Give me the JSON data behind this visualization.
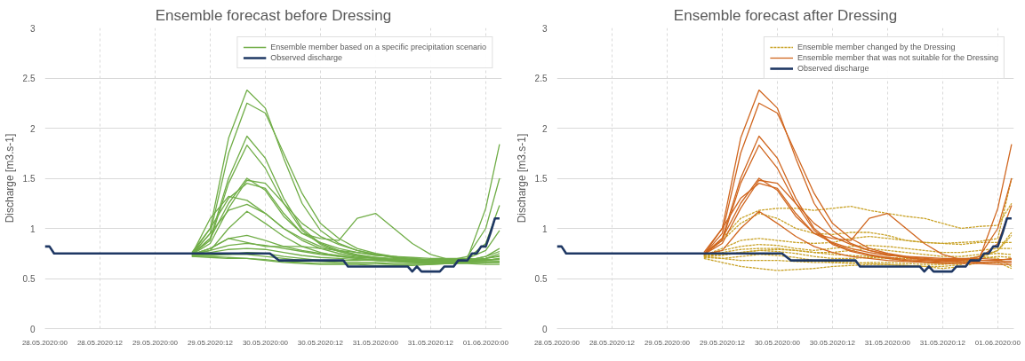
{
  "chart_data": [
    {
      "type": "line",
      "title": "Ensemble forecast before Dressing",
      "ylabel": "Discharge [m3.s-1]",
      "x": [
        "2020-05-29T08:00",
        "2020-05-29T12:00",
        "2020-05-29T16:00",
        "2020-05-29T20:00",
        "2020-05-30T00:00",
        "2020-05-30T04:00",
        "2020-05-30T08:00",
        "2020-05-30T12:00",
        "2020-05-30T16:00",
        "2020-05-30T20:00",
        "2020-05-31T00:00",
        "2020-05-31T04:00",
        "2020-05-31T08:00",
        "2020-05-31T12:00",
        "2020-05-31T16:00",
        "2020-05-31T20:00",
        "2020-06-01T00:00",
        "2020-06-01T03:00"
      ],
      "xlim": [
        "2020-05-28T00:00",
        "2020-06-01T03:30"
      ],
      "xticks": [
        {
          "value": "2020-05-28T00:00",
          "label": "28.05.2020:00"
        },
        {
          "value": "2020-05-28T12:00",
          "label": "28.05.2020:12"
        },
        {
          "value": "2020-05-29T00:00",
          "label": "29.05.2020:00"
        },
        {
          "value": "2020-05-29T12:00",
          "label": "29.05.2020:12"
        },
        {
          "value": "2020-05-30T00:00",
          "label": "30.05.2020:00"
        },
        {
          "value": "2020-05-30T12:00",
          "label": "30.05.2020:12"
        },
        {
          "value": "2020-05-31T00:00",
          "label": "31.05.2020:00"
        },
        {
          "value": "2020-05-31T12:00",
          "label": "31.05.2020:12"
        },
        {
          "value": "2020-06-01T00:00",
          "label": "01.06.2020:00"
        }
      ],
      "ylim": [
        0,
        3
      ],
      "yticks": [
        0,
        0.5,
        1,
        1.5,
        2,
        2.5,
        3
      ],
      "grid": true,
      "legend": "top right",
      "series": [
        {
          "name": "Ensemble member based on a specific precipitation scenario",
          "color": "#70ad47",
          "values": [
            0.74,
            1.0,
            1.9,
            2.38,
            2.2,
            1.7,
            1.25,
            0.98,
            0.85,
            0.78,
            0.74,
            0.71,
            0.69,
            0.68,
            0.67,
            0.66,
            0.66,
            0.66
          ]
        },
        {
          "color": "#70ad47",
          "values": [
            0.74,
            0.95,
            1.75,
            2.25,
            2.15,
            1.75,
            1.35,
            1.05,
            0.9,
            0.8,
            0.75,
            0.72,
            0.7,
            0.69,
            0.69,
            0.7,
            1.2,
            1.84
          ]
        },
        {
          "color": "#70ad47",
          "values": [
            0.74,
            0.9,
            1.5,
            1.92,
            1.7,
            1.3,
            1.0,
            0.85,
            0.78,
            0.74,
            0.71,
            0.69,
            0.68,
            0.67,
            0.68,
            0.72,
            1.0,
            1.5
          ]
        },
        {
          "color": "#70ad47",
          "values": [
            0.74,
            0.88,
            1.45,
            1.83,
            1.6,
            1.25,
            0.98,
            0.84,
            0.77,
            0.73,
            0.7,
            0.68,
            0.67,
            0.66,
            0.66,
            0.66,
            0.67,
            0.67
          ]
        },
        {
          "color": "#70ad47",
          "values": [
            0.74,
            0.85,
            1.2,
            1.48,
            1.45,
            1.25,
            1.05,
            0.92,
            0.84,
            0.78,
            0.74,
            0.71,
            0.69,
            0.68,
            0.68,
            0.7,
            0.85,
            1.23
          ]
        },
        {
          "color": "#70ad47",
          "values": [
            0.76,
            1.0,
            1.3,
            1.45,
            1.4,
            1.15,
            0.95,
            0.9,
            0.88,
            1.1,
            1.15,
            1.0,
            0.85,
            0.74,
            0.69,
            0.68,
            0.68,
            0.7
          ]
        },
        {
          "color": "#70ad47",
          "values": [
            0.74,
            0.78,
            1.0,
            1.17,
            1.05,
            0.92,
            0.82,
            0.76,
            0.72,
            0.7,
            0.68,
            0.67,
            0.66,
            0.65,
            0.65,
            0.65,
            0.64,
            0.64
          ]
        },
        {
          "color": "#70ad47",
          "values": [
            0.74,
            0.9,
            1.25,
            1.5,
            1.38,
            1.12,
            0.95,
            0.86,
            0.8,
            0.76,
            0.73,
            0.72,
            0.71,
            0.7,
            0.7,
            0.7,
            0.69,
            0.69
          ]
        },
        {
          "color": "#70ad47",
          "values": [
            0.74,
            1.1,
            1.32,
            1.28,
            1.15,
            1.0,
            0.9,
            0.82,
            0.77,
            0.73,
            0.71,
            0.7,
            0.69,
            0.68,
            0.68,
            0.68,
            0.7,
            0.73
          ]
        },
        {
          "color": "#70ad47",
          "values": [
            0.74,
            0.95,
            1.18,
            1.24,
            1.15,
            1.0,
            0.88,
            0.8,
            0.75,
            0.72,
            0.7,
            0.68,
            0.67,
            0.66,
            0.66,
            0.67,
            0.68,
            0.7
          ]
        },
        {
          "color": "#70ad47",
          "values": [
            0.74,
            0.8,
            0.9,
            0.93,
            0.88,
            0.82,
            0.78,
            0.75,
            0.73,
            0.71,
            0.7,
            0.69,
            0.68,
            0.67,
            0.67,
            0.68,
            0.72,
            0.8
          ]
        },
        {
          "color": "#70ad47",
          "values": [
            0.74,
            0.78,
            0.83,
            0.85,
            0.83,
            0.8,
            0.77,
            0.74,
            0.72,
            0.7,
            0.69,
            0.68,
            0.67,
            0.66,
            0.66,
            0.67,
            0.7,
            0.75
          ]
        },
        {
          "color": "#70ad47",
          "values": [
            0.74,
            0.76,
            0.79,
            0.8,
            0.79,
            0.76,
            0.73,
            0.71,
            0.7,
            0.69,
            0.68,
            0.67,
            0.66,
            0.65,
            0.65,
            0.66,
            0.66,
            0.67
          ]
        },
        {
          "color": "#70ad47",
          "values": [
            0.73,
            0.73,
            0.74,
            0.76,
            0.75,
            0.72,
            0.7,
            0.68,
            0.68,
            0.68,
            0.69,
            0.69,
            0.68,
            0.67,
            0.68,
            0.7,
            0.78,
            0.98
          ]
        },
        {
          "color": "#70ad47",
          "values": [
            0.72,
            0.71,
            0.7,
            0.7,
            0.69,
            0.67,
            0.66,
            0.65,
            0.65,
            0.65,
            0.65,
            0.64,
            0.64,
            0.64,
            0.65,
            0.66,
            0.66,
            0.66
          ]
        },
        {
          "color": "#70ad47",
          "values": [
            0.73,
            0.74,
            0.74,
            0.74,
            0.72,
            0.7,
            0.68,
            0.67,
            0.66,
            0.66,
            0.66,
            0.65,
            0.65,
            0.65,
            0.66,
            0.68,
            0.72,
            0.77
          ]
        },
        {
          "color": "#70ad47",
          "values": [
            0.72,
            0.72,
            0.71,
            0.7,
            0.68,
            0.66,
            0.65,
            0.64,
            0.64,
            0.64,
            0.63,
            0.63,
            0.63,
            0.64,
            0.65,
            0.67,
            0.68,
            0.69
          ]
        },
        {
          "color": "#70ad47",
          "values": [
            0.74,
            0.8,
            0.9,
            0.86,
            0.82,
            0.82,
            0.82,
            0.8,
            0.78,
            0.76,
            0.74,
            0.72,
            0.7,
            0.68,
            0.67,
            0.68,
            0.7,
            0.72
          ]
        },
        {
          "name": "Observed discharge",
          "color": "#1f3864",
          "x": [
            "2020-05-28T00:00",
            "2020-05-28T01:00",
            "2020-05-28T02:00",
            "2020-05-30T01:00",
            "2020-05-30T03:00",
            "2020-05-30T17:00",
            "2020-05-30T18:00",
            "2020-05-31T07:00",
            "2020-05-31T08:00",
            "2020-05-31T09:00",
            "2020-05-31T10:00",
            "2020-05-31T14:00",
            "2020-05-31T15:00",
            "2020-05-31T17:00",
            "2020-05-31T18:00",
            "2020-05-31T20:00",
            "2020-05-31T21:00",
            "2020-05-31T22:00",
            "2020-05-31T23:00",
            "2020-06-01T00:00",
            "2020-06-01T01:00",
            "2020-06-01T02:00",
            "2020-06-01T03:00"
          ],
          "values": [
            0.82,
            0.82,
            0.75,
            0.75,
            0.68,
            0.68,
            0.62,
            0.62,
            0.57,
            0.62,
            0.57,
            0.57,
            0.62,
            0.62,
            0.68,
            0.68,
            0.75,
            0.75,
            0.82,
            0.82,
            0.95,
            1.1,
            1.1
          ]
        }
      ]
    },
    {
      "type": "line",
      "title": "Ensemble forecast after Dressing",
      "ylabel": "Discharge [m3.s-1]",
      "x": [
        "2020-05-29T08:00",
        "2020-05-29T12:00",
        "2020-05-29T16:00",
        "2020-05-29T20:00",
        "2020-05-30T00:00",
        "2020-05-30T04:00",
        "2020-05-30T08:00",
        "2020-05-30T12:00",
        "2020-05-30T16:00",
        "2020-05-30T20:00",
        "2020-05-31T00:00",
        "2020-05-31T04:00",
        "2020-05-31T08:00",
        "2020-05-31T12:00",
        "2020-05-31T16:00",
        "2020-05-31T20:00",
        "2020-06-01T00:00",
        "2020-06-01T03:00"
      ],
      "xlim": [
        "2020-05-28T00:00",
        "2020-06-01T03:30"
      ],
      "xticks": [
        {
          "value": "2020-05-28T00:00",
          "label": "28.05.2020:00"
        },
        {
          "value": "2020-05-28T12:00",
          "label": "28.05.2020:12"
        },
        {
          "value": "2020-05-29T00:00",
          "label": "29.05.2020:00"
        },
        {
          "value": "2020-05-29T12:00",
          "label": "29.05.2020:12"
        },
        {
          "value": "2020-05-30T00:00",
          "label": "30.05.2020:00"
        },
        {
          "value": "2020-05-30T12:00",
          "label": "30.05.2020:12"
        },
        {
          "value": "2020-05-31T00:00",
          "label": "31.05.2020:00"
        },
        {
          "value": "2020-05-31T12:00",
          "label": "31.05.2020:12"
        },
        {
          "value": "2020-06-01T00:00",
          "label": "01.06.2020:00"
        }
      ],
      "ylim": [
        0,
        3
      ],
      "yticks": [
        0,
        0.5,
        1,
        1.5,
        2,
        2.5,
        3
      ],
      "grid": true,
      "legend": "top right",
      "series": [
        {
          "name": "Ensemble member changed by the Dressing",
          "color": "#c9a227",
          "line_style": "dashed",
          "values": [
            0.74,
            0.9,
            1.1,
            1.18,
            1.2,
            1.2,
            1.18,
            1.2,
            1.22,
            1.18,
            1.15,
            1.12,
            1.1,
            1.05,
            1.0,
            1.02,
            1.03,
            1.25
          ]
        },
        {
          "color": "#c9a227",
          "line_style": "dashed",
          "values": [
            0.74,
            0.88,
            1.05,
            1.15,
            1.1,
            1.0,
            0.95,
            0.94,
            0.96,
            0.96,
            0.93,
            0.88,
            0.86,
            0.85,
            0.86,
            0.87,
            0.9,
            1.5
          ]
        },
        {
          "color": "#c9a227",
          "line_style": "dashed",
          "values": [
            0.73,
            0.8,
            0.88,
            0.9,
            0.88,
            0.86,
            0.85,
            0.86,
            0.9,
            0.92,
            0.9,
            0.88,
            0.86,
            0.85,
            0.84,
            0.86,
            0.86,
            0.86
          ]
        },
        {
          "color": "#c9a227",
          "line_style": "dashed",
          "values": [
            0.73,
            0.78,
            0.82,
            0.84,
            0.83,
            0.8,
            0.78,
            0.8,
            0.82,
            0.83,
            0.82,
            0.8,
            0.78,
            0.76,
            0.76,
            0.78,
            0.8,
            0.8
          ]
        },
        {
          "color": "#c9a227",
          "line_style": "dashed",
          "values": [
            0.73,
            0.76,
            0.79,
            0.8,
            0.8,
            0.78,
            0.76,
            0.76,
            0.78,
            0.8,
            0.78,
            0.76,
            0.74,
            0.72,
            0.72,
            0.74,
            0.75,
            0.74
          ]
        },
        {
          "color": "#c9a227",
          "line_style": "dashed",
          "values": [
            0.72,
            0.73,
            0.76,
            0.78,
            0.77,
            0.75,
            0.72,
            0.7,
            0.7,
            0.71,
            0.7,
            0.68,
            0.66,
            0.65,
            0.66,
            0.7,
            0.78,
            0.93
          ]
        },
        {
          "color": "#c9a227",
          "line_style": "dashed",
          "values": [
            0.71,
            0.7,
            0.72,
            0.74,
            0.73,
            0.71,
            0.68,
            0.66,
            0.65,
            0.66,
            0.66,
            0.65,
            0.64,
            0.64,
            0.66,
            0.72,
            0.7,
            0.62
          ]
        },
        {
          "color": "#c9a227",
          "line_style": "dashed",
          "values": [
            0.7,
            0.66,
            0.62,
            0.6,
            0.58,
            0.59,
            0.6,
            0.62,
            0.63,
            0.64,
            0.64,
            0.63,
            0.62,
            0.6,
            0.62,
            0.66,
            0.66,
            0.6
          ]
        },
        {
          "color": "#c9a227",
          "line_style": "dashed",
          "values": [
            0.72,
            0.7,
            0.68,
            0.68,
            0.68,
            0.67,
            0.66,
            0.66,
            0.66,
            0.65,
            0.64,
            0.63,
            0.62,
            0.62,
            0.64,
            0.7,
            0.72,
            0.71
          ]
        },
        {
          "color": "#c9a227",
          "line_style": "dashed",
          "values": [
            0.73,
            0.74,
            0.76,
            0.78,
            0.79,
            0.78,
            0.76,
            0.74,
            0.73,
            0.72,
            0.71,
            0.7,
            0.69,
            0.68,
            0.69,
            0.72,
            0.78,
            0.96
          ]
        },
        {
          "name": "Ensemble member that was not suitable for the Dressing",
          "color": "#d0661f",
          "values": [
            0.74,
            1.0,
            1.9,
            2.38,
            2.2,
            1.7,
            1.25,
            0.98,
            0.85,
            0.78,
            0.74,
            0.71,
            0.69,
            0.68,
            0.67,
            0.66,
            0.66,
            0.66
          ]
        },
        {
          "color": "#d0661f",
          "values": [
            0.74,
            0.95,
            1.75,
            2.25,
            2.15,
            1.75,
            1.35,
            1.05,
            0.9,
            0.8,
            0.75,
            0.72,
            0.7,
            0.69,
            0.69,
            0.7,
            1.2,
            1.84
          ]
        },
        {
          "color": "#d0661f",
          "values": [
            0.74,
            0.9,
            1.5,
            1.92,
            1.7,
            1.3,
            1.0,
            0.85,
            0.78,
            0.74,
            0.71,
            0.69,
            0.68,
            0.67,
            0.68,
            0.72,
            1.0,
            1.5
          ]
        },
        {
          "color": "#d0661f",
          "values": [
            0.74,
            0.88,
            1.45,
            1.83,
            1.6,
            1.25,
            0.98,
            0.84,
            0.77,
            0.73,
            0.7,
            0.68,
            0.67,
            0.66,
            0.66,
            0.66,
            0.67,
            0.67
          ]
        },
        {
          "color": "#d0661f",
          "values": [
            0.74,
            0.85,
            1.2,
            1.48,
            1.45,
            1.25,
            1.05,
            0.92,
            0.84,
            0.78,
            0.74,
            0.71,
            0.69,
            0.68,
            0.68,
            0.7,
            0.85,
            1.23
          ]
        },
        {
          "color": "#d0661f",
          "values": [
            0.76,
            1.0,
            1.3,
            1.45,
            1.4,
            1.15,
            0.95,
            0.9,
            0.88,
            1.1,
            1.15,
            1.0,
            0.85,
            0.74,
            0.69,
            0.68,
            0.68,
            0.7
          ]
        },
        {
          "color": "#d0661f",
          "values": [
            0.74,
            0.78,
            1.0,
            1.17,
            1.05,
            0.92,
            0.82,
            0.76,
            0.72,
            0.7,
            0.68,
            0.67,
            0.66,
            0.65,
            0.65,
            0.65,
            0.64,
            0.64
          ]
        },
        {
          "color": "#d0661f",
          "values": [
            0.74,
            0.9,
            1.25,
            1.5,
            1.38,
            1.12,
            0.95,
            0.86,
            0.8,
            0.76,
            0.73,
            0.72,
            0.71,
            0.7,
            0.7,
            0.7,
            0.69,
            0.69
          ]
        },
        {
          "name": "Observed discharge",
          "color": "#1f3864",
          "x": [
            "2020-05-28T00:00",
            "2020-05-28T01:00",
            "2020-05-28T02:00",
            "2020-05-30T01:00",
            "2020-05-30T03:00",
            "2020-05-30T17:00",
            "2020-05-30T18:00",
            "2020-05-31T07:00",
            "2020-05-31T08:00",
            "2020-05-31T09:00",
            "2020-05-31T10:00",
            "2020-05-31T14:00",
            "2020-05-31T15:00",
            "2020-05-31T17:00",
            "2020-05-31T18:00",
            "2020-05-31T20:00",
            "2020-05-31T21:00",
            "2020-05-31T22:00",
            "2020-05-31T23:00",
            "2020-06-01T00:00",
            "2020-06-01T01:00",
            "2020-06-01T02:00",
            "2020-06-01T03:00"
          ],
          "values": [
            0.82,
            0.82,
            0.75,
            0.75,
            0.68,
            0.68,
            0.62,
            0.62,
            0.57,
            0.62,
            0.57,
            0.57,
            0.62,
            0.62,
            0.68,
            0.68,
            0.75,
            0.75,
            0.82,
            0.82,
            0.95,
            1.1,
            1.1
          ]
        }
      ]
    }
  ]
}
